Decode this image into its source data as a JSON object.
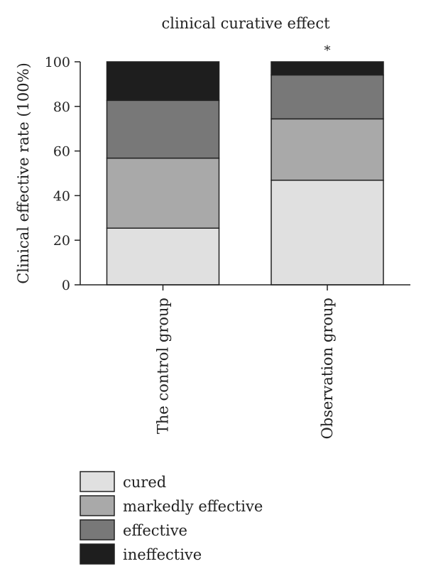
{
  "chart_data": {
    "type": "bar",
    "stacked": true,
    "title": "clinical curative effect",
    "ylabel": "Clinical effective rate (100%)",
    "xlabel": "",
    "ylim": [
      0,
      100
    ],
    "yticks": [
      0,
      20,
      40,
      60,
      80,
      100
    ],
    "categories": [
      "The control group",
      "Observation group"
    ],
    "series": [
      {
        "name": "cured",
        "color": "#e0e0e0",
        "values": [
          25.4,
          46.9
        ]
      },
      {
        "name": "markedly effective",
        "color": "#a9a9a9",
        "values": [
          31.4,
          27.5
        ]
      },
      {
        "name": "effective",
        "color": "#787878",
        "values": [
          25.9,
          19.7
        ]
      },
      {
        "name": "ineffective",
        "color": "#1e1e1e",
        "values": [
          17.3,
          5.9
        ]
      }
    ],
    "annotations": [
      {
        "category": "Observation group",
        "text": "*"
      }
    ],
    "legend_position": "bottom-left",
    "grid": false
  }
}
